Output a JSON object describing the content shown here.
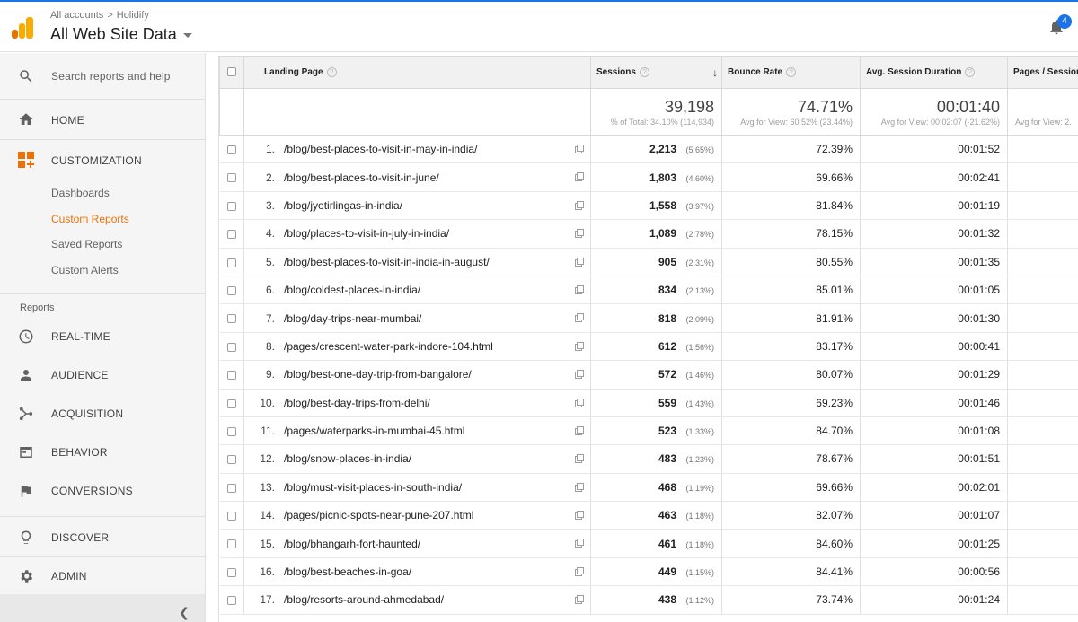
{
  "header": {
    "breadcrumb": [
      "All accounts",
      "Holidify"
    ],
    "account_title": "All Web Site Data",
    "notification_count": "4"
  },
  "sidebar": {
    "search_placeholder": "Search reports and help",
    "home": "HOME",
    "customization": "CUSTOMIZATION",
    "customization_items": [
      "Dashboards",
      "Custom Reports",
      "Saved Reports",
      "Custom Alerts"
    ],
    "active_item": "Custom Reports",
    "reports_label": "Reports",
    "reports": [
      "REAL-TIME",
      "AUDIENCE",
      "ACQUISITION",
      "BEHAVIOR",
      "CONVERSIONS"
    ],
    "discover": "DISCOVER",
    "admin": "ADMIN"
  },
  "table": {
    "columns": {
      "landing_page": "Landing Page",
      "sessions": "Sessions",
      "bounce_rate": "Bounce Rate",
      "avg_session_duration": "Avg. Session Duration",
      "pages_per_session": "Pages / Session"
    },
    "totals": {
      "sessions": "39,198",
      "sessions_sub": "% of Total: 34.10% (114,934)",
      "bounce_rate": "74.71%",
      "bounce_rate_sub": "Avg for View: 60.52% (23.44%)",
      "avg_session_duration": "00:01:40",
      "avg_session_duration_sub": "Avg for View: 00:02:07 (-21.62%)",
      "pages_per_session_sub": "Avg for View: 2."
    },
    "rows": [
      {
        "n": "1.",
        "page": "/blog/best-places-to-visit-in-may-in-india/",
        "sessions": "2,213",
        "pct": "(5.65%)",
        "bounce": "72.39%",
        "duration": "00:01:52"
      },
      {
        "n": "2.",
        "page": "/blog/best-places-to-visit-in-june/",
        "sessions": "1,803",
        "pct": "(4.60%)",
        "bounce": "69.66%",
        "duration": "00:02:41"
      },
      {
        "n": "3.",
        "page": "/blog/jyotirlingas-in-india/",
        "sessions": "1,558",
        "pct": "(3.97%)",
        "bounce": "81.84%",
        "duration": "00:01:19"
      },
      {
        "n": "4.",
        "page": "/blog/places-to-visit-in-july-in-india/",
        "sessions": "1,089",
        "pct": "(2.78%)",
        "bounce": "78.15%",
        "duration": "00:01:32"
      },
      {
        "n": "5.",
        "page": "/blog/best-places-to-visit-in-india-in-august/",
        "sessions": "905",
        "pct": "(2.31%)",
        "bounce": "80.55%",
        "duration": "00:01:35"
      },
      {
        "n": "6.",
        "page": "/blog/coldest-places-in-india/",
        "sessions": "834",
        "pct": "(2.13%)",
        "bounce": "85.01%",
        "duration": "00:01:05"
      },
      {
        "n": "7.",
        "page": "/blog/day-trips-near-mumbai/",
        "sessions": "818",
        "pct": "(2.09%)",
        "bounce": "81.91%",
        "duration": "00:01:30"
      },
      {
        "n": "8.",
        "page": "/pages/crescent-water-park-indore-104.html",
        "sessions": "612",
        "pct": "(1.56%)",
        "bounce": "83.17%",
        "duration": "00:00:41"
      },
      {
        "n": "9.",
        "page": "/blog/best-one-day-trip-from-bangalore/",
        "sessions": "572",
        "pct": "(1.46%)",
        "bounce": "80.07%",
        "duration": "00:01:29"
      },
      {
        "n": "10.",
        "page": "/blog/best-day-trips-from-delhi/",
        "sessions": "559",
        "pct": "(1.43%)",
        "bounce": "69.23%",
        "duration": "00:01:46"
      },
      {
        "n": "11.",
        "page": "/pages/waterparks-in-mumbai-45.html",
        "sessions": "523",
        "pct": "(1.33%)",
        "bounce": "84.70%",
        "duration": "00:01:08"
      },
      {
        "n": "12.",
        "page": "/blog/snow-places-in-india/",
        "sessions": "483",
        "pct": "(1.23%)",
        "bounce": "78.67%",
        "duration": "00:01:51"
      },
      {
        "n": "13.",
        "page": "/blog/must-visit-places-in-south-india/",
        "sessions": "468",
        "pct": "(1.19%)",
        "bounce": "69.66%",
        "duration": "00:02:01"
      },
      {
        "n": "14.",
        "page": "/pages/picnic-spots-near-pune-207.html",
        "sessions": "463",
        "pct": "(1.18%)",
        "bounce": "82.07%",
        "duration": "00:01:07"
      },
      {
        "n": "15.",
        "page": "/blog/bhangarh-fort-haunted/",
        "sessions": "461",
        "pct": "(1.18%)",
        "bounce": "84.60%",
        "duration": "00:01:25"
      },
      {
        "n": "16.",
        "page": "/blog/best-beaches-in-goa/",
        "sessions": "449",
        "pct": "(1.15%)",
        "bounce": "84.41%",
        "duration": "00:00:56"
      },
      {
        "n": "17.",
        "page": "/blog/resorts-around-ahmedabad/",
        "sessions": "438",
        "pct": "(1.12%)",
        "bounce": "73.74%",
        "duration": "00:01:24"
      }
    ]
  },
  "colors": {
    "accent_orange": "#e8710a",
    "brand_yellow": "#f9ab00",
    "notification_blue": "#1a73e8"
  },
  "icons": [
    "analytics-logo-icon",
    "search-icon",
    "home-icon",
    "customization-icon",
    "clock-icon",
    "person-icon",
    "acquisition-icon",
    "behavior-icon",
    "flag-icon",
    "lightbulb-icon",
    "gear-icon",
    "bell-icon",
    "open-in-new-icon",
    "sort-down-icon",
    "chevron-left-icon"
  ]
}
